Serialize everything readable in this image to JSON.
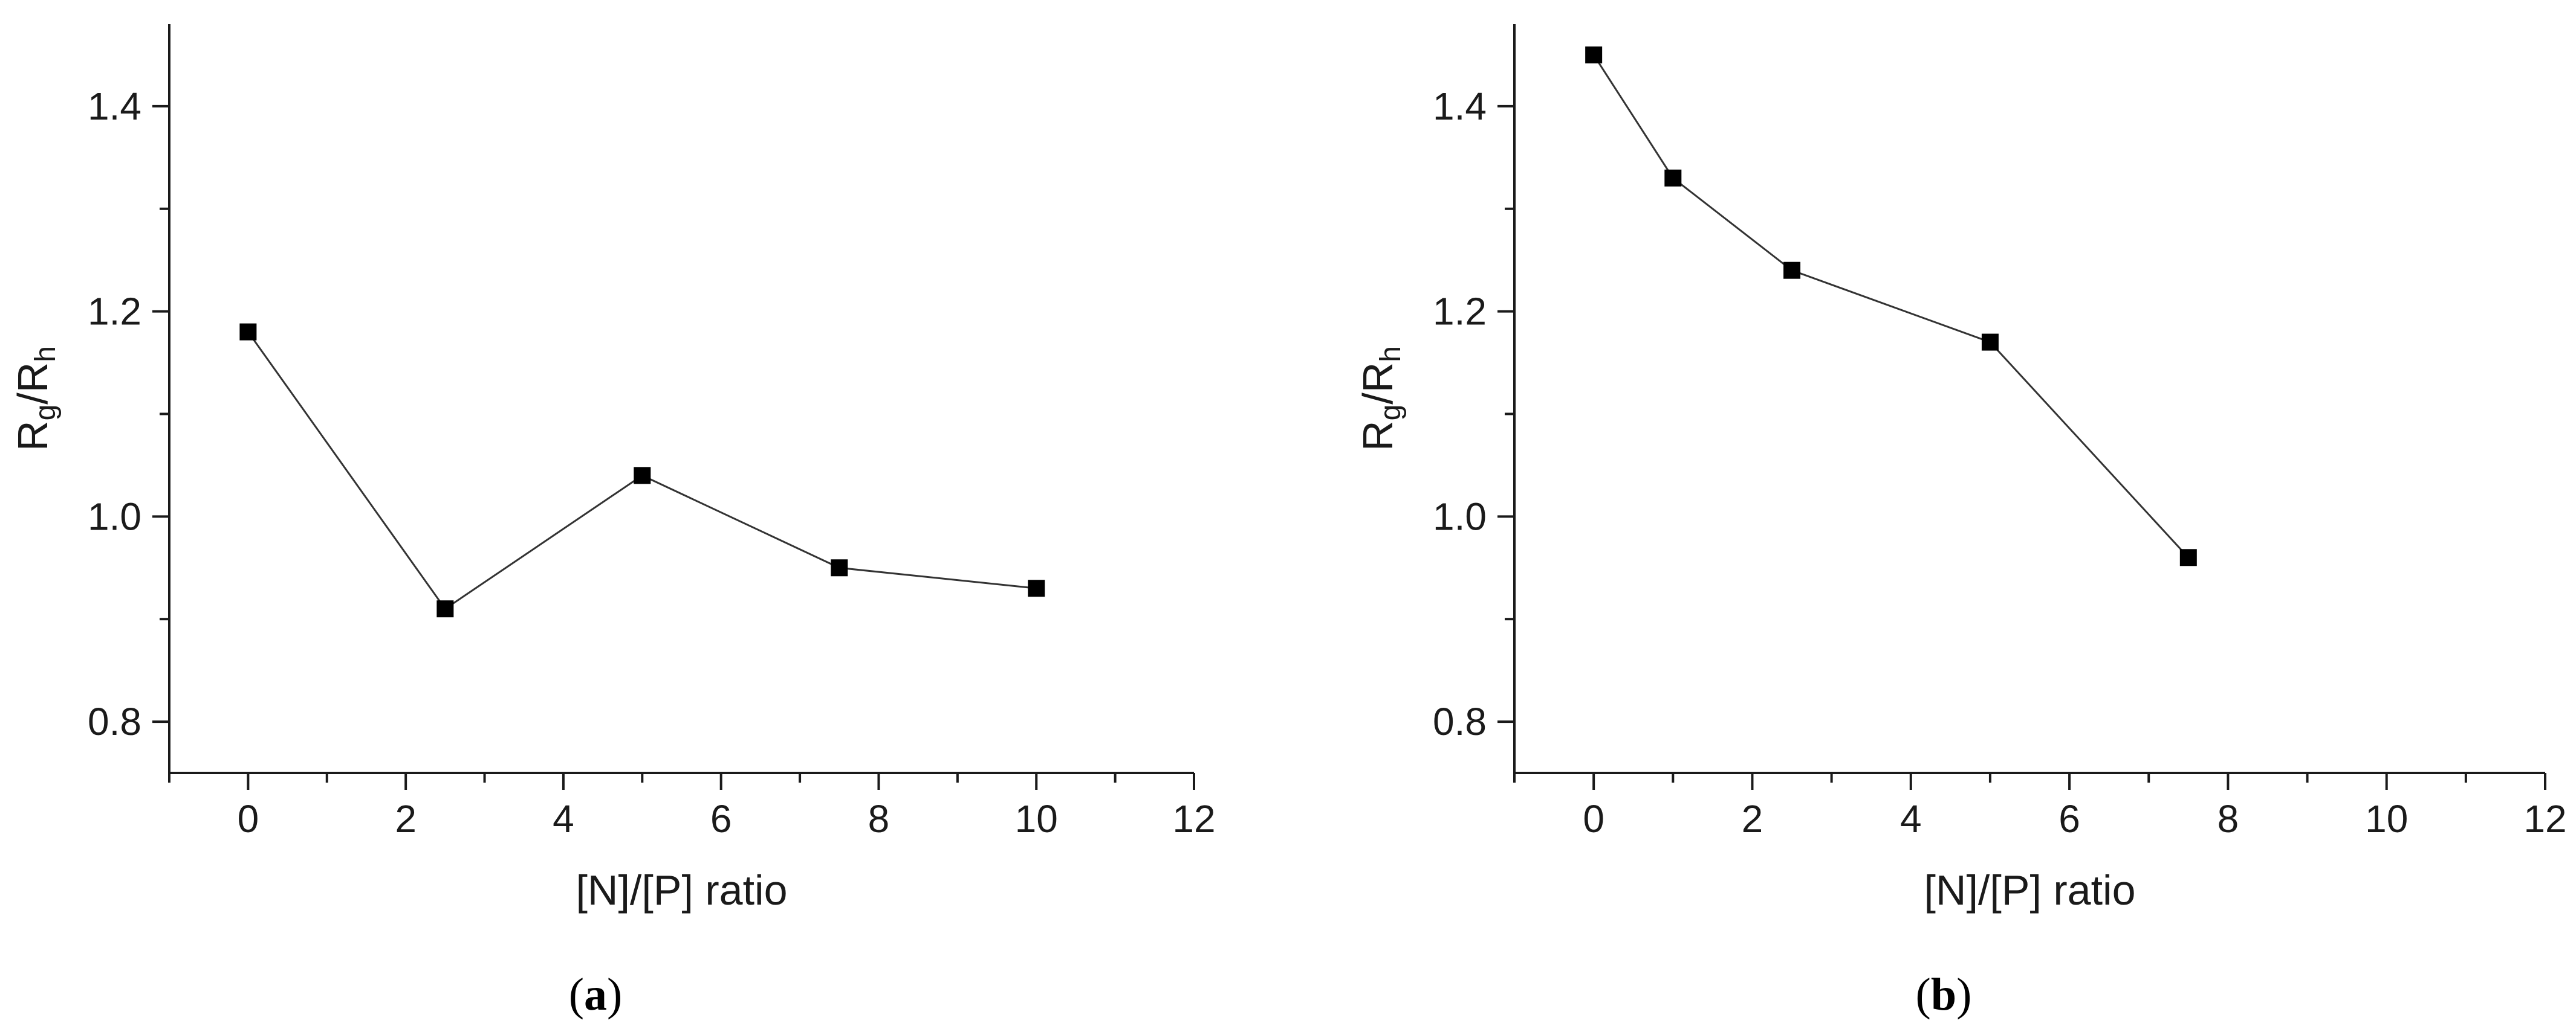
{
  "chart_data": [
    {
      "type": "line",
      "panel_label": "a",
      "xlabel": "[N]/[P] ratio",
      "ylabel": {
        "base": "R",
        "sub1": "g",
        "mid": "/R",
        "sub2": "h"
      },
      "xlim": [
        -1,
        12
      ],
      "ylim": [
        0.75,
        1.48
      ],
      "xticks": [
        0,
        2,
        4,
        6,
        8,
        10,
        12
      ],
      "yticks": [
        0.8,
        1.0,
        1.2,
        1.4
      ],
      "xtick_labels": [
        "0",
        "2",
        "4",
        "6",
        "8",
        "10",
        "12"
      ],
      "ytick_labels": [
        "0.8",
        "1.0",
        "1.2",
        "1.4"
      ],
      "marker": "square",
      "series": [
        {
          "x": [
            0,
            2.5,
            5,
            7.5,
            10
          ],
          "y": [
            1.18,
            0.91,
            1.04,
            0.95,
            0.93
          ]
        }
      ]
    },
    {
      "type": "line",
      "panel_label": "b",
      "xlabel": "[N]/[P] ratio",
      "ylabel": {
        "base": "R",
        "sub1": "g",
        "mid": "/R",
        "sub2": "h"
      },
      "xlim": [
        -1,
        12
      ],
      "ylim": [
        0.75,
        1.48
      ],
      "xticks": [
        0,
        2,
        4,
        6,
        8,
        10,
        12
      ],
      "yticks": [
        0.8,
        1.0,
        1.2,
        1.4
      ],
      "xtick_labels": [
        "0",
        "2",
        "4",
        "6",
        "8",
        "10",
        "12"
      ],
      "ytick_labels": [
        "0.8",
        "1.0",
        "1.2",
        "1.4"
      ],
      "marker": "square",
      "series": [
        {
          "x": [
            0,
            1,
            2.5,
            5,
            7.5
          ],
          "y": [
            1.45,
            1.33,
            1.24,
            1.17,
            0.96
          ]
        }
      ]
    }
  ],
  "colors": {
    "axis": "#1a1a1a",
    "line": "#333333",
    "marker": "#000000"
  }
}
